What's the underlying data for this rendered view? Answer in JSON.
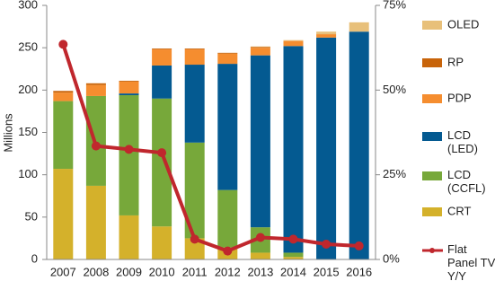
{
  "chart_data": {
    "type": "bar",
    "stacked": true,
    "y_label": "Millions",
    "categories": [
      "2007",
      "2008",
      "2009",
      "2010",
      "2011",
      "2012",
      "2013",
      "2014",
      "2015",
      "2016"
    ],
    "series": [
      {
        "name": "CRT",
        "color": "#d4b12b",
        "values": [
          107,
          87,
          52,
          39,
          25,
          14,
          8,
          3,
          0,
          0
        ]
      },
      {
        "name": "LCD\n(CCFL)",
        "color": "#77a83a",
        "values": [
          80,
          106,
          142,
          151,
          113,
          68,
          30,
          5,
          0,
          0
        ]
      },
      {
        "name": "LCD\n(LED)",
        "color": "#045a91",
        "values": [
          0,
          0,
          2,
          39,
          92,
          149,
          203,
          244,
          262,
          269
        ]
      },
      {
        "name": "PDP",
        "color": "#f58d2f",
        "values": [
          10,
          13,
          14,
          19,
          18,
          12,
          9,
          6,
          4,
          0
        ]
      },
      {
        "name": "RP",
        "color": "#c8640a",
        "values": [
          2,
          2,
          1,
          1,
          1,
          1,
          1,
          0,
          0,
          0
        ]
      },
      {
        "name": "OLED",
        "color": "#e8c07a",
        "values": [
          0,
          0,
          0,
          0,
          0,
          0,
          0.5,
          1,
          3,
          11
        ]
      },
      {
        "name": "Flat\nPanel TV\nY/Y",
        "color": "#c0272d",
        "type": "line",
        "axis": "y2",
        "values": [
          63.5,
          33.5,
          32.5,
          31.5,
          6,
          2.5,
          6.5,
          6,
          4.5,
          4
        ]
      }
    ],
    "ylim": [
      0,
      300
    ],
    "yticks": [
      0,
      50,
      100,
      150,
      200,
      250,
      300
    ],
    "y2lim": [
      0,
      75
    ],
    "y2ticks": [
      {
        "value": 0,
        "label": "0%"
      },
      {
        "value": 25,
        "label": "25%"
      },
      {
        "value": 50,
        "label": "50%"
      },
      {
        "value": 75,
        "label": "75%"
      }
    ],
    "grid": false,
    "legend": "right"
  }
}
